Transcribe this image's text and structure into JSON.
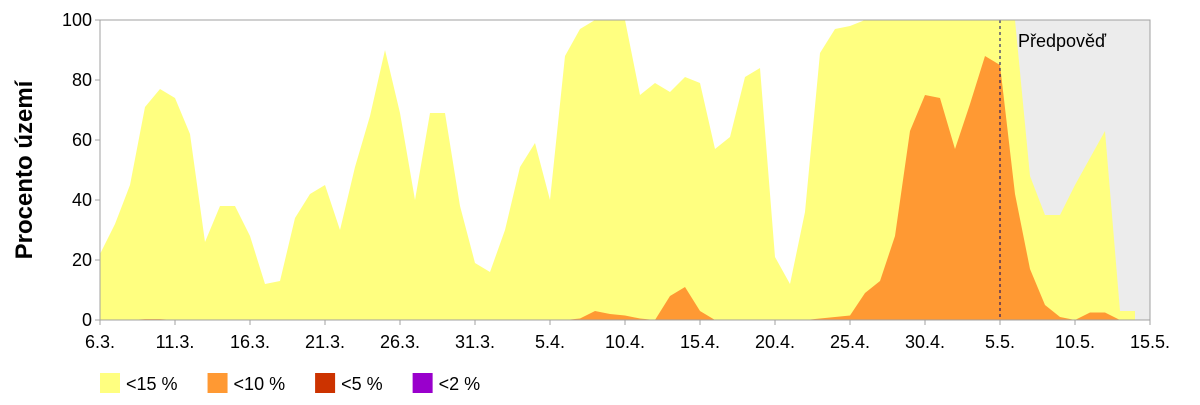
{
  "chart_data": {
    "type": "area",
    "ylabel": "Procento území",
    "categories": [
      "6.3.",
      null,
      null,
      null,
      null,
      "11.3.",
      null,
      null,
      null,
      null,
      "16.3.",
      null,
      null,
      null,
      null,
      "21.3.",
      null,
      null,
      null,
      null,
      "26.3.",
      null,
      null,
      null,
      null,
      "31.3.",
      null,
      null,
      null,
      null,
      "5.4.",
      null,
      null,
      null,
      null,
      "10.4.",
      null,
      null,
      null,
      null,
      "15.4.",
      null,
      null,
      null,
      null,
      "20.4.",
      null,
      null,
      null,
      null,
      "25.4.",
      null,
      null,
      null,
      null,
      "30.4.",
      null,
      null,
      null,
      null,
      "5.5.",
      null,
      null,
      null,
      null,
      "10.5.",
      null,
      null,
      null,
      null,
      "15.5."
    ],
    "series": [
      {
        "name": "<15 %",
        "color": "#ffff80",
        "values": [
          22,
          32,
          45,
          71,
          77,
          74,
          62,
          26,
          38,
          38,
          28,
          12,
          13,
          34,
          42,
          45,
          30,
          51,
          68,
          90,
          69,
          40,
          69,
          69,
          38,
          19,
          16,
          30,
          51,
          59,
          40,
          88,
          97,
          100,
          100,
          100,
          75,
          79,
          76,
          81,
          79,
          57,
          61,
          81,
          84,
          21,
          12,
          36,
          89,
          97,
          98,
          100,
          100,
          100,
          100,
          100,
          100,
          100,
          100,
          100,
          100,
          100,
          48,
          35,
          35,
          45,
          54,
          63,
          3,
          3,
          null
        ]
      },
      {
        "name": "<10 %",
        "color": "#ff9933",
        "values": [
          0,
          0,
          0,
          0.3,
          0.3,
          0,
          0,
          0,
          0,
          0,
          0,
          0,
          0,
          0,
          0,
          0,
          0,
          0,
          0,
          0,
          0,
          0,
          0,
          0,
          0,
          0,
          0,
          0,
          0,
          0,
          0,
          0,
          0.5,
          3,
          2,
          1.5,
          0.5,
          0,
          8,
          11,
          3,
          0,
          0,
          0,
          0,
          0,
          0,
          0,
          0.5,
          1,
          1.5,
          9,
          13,
          28,
          63,
          75,
          74,
          57,
          72,
          88,
          85,
          42,
          17,
          5,
          1,
          0,
          2.5,
          2.5,
          0,
          0,
          null
        ]
      },
      {
        "name": "<5 %",
        "color": "#cc3300",
        "values": [
          0,
          0,
          0,
          0,
          0,
          0,
          0,
          0,
          0,
          0,
          0,
          0,
          0,
          0,
          0,
          0,
          0,
          0,
          0,
          0,
          0,
          0,
          0,
          0,
          0,
          0,
          0,
          0,
          0,
          0,
          0,
          0,
          0,
          0,
          0,
          0,
          0,
          0,
          0,
          0,
          0,
          0,
          0,
          0,
          0,
          0,
          0,
          0,
          0,
          0,
          0,
          0,
          0,
          0,
          0,
          0,
          0,
          0,
          0,
          0,
          0,
          0,
          0,
          0,
          0,
          0,
          0,
          0,
          0,
          0,
          null
        ]
      },
      {
        "name": "<2 %",
        "color": "#9900cc",
        "values": [
          0,
          0,
          0,
          0,
          0,
          0,
          0,
          0,
          0,
          0,
          0,
          0,
          0,
          0,
          0,
          0,
          0,
          0,
          0,
          0,
          0,
          0,
          0,
          0,
          0,
          0,
          0,
          0,
          0,
          0,
          0,
          0,
          0,
          0,
          0,
          0,
          0,
          0,
          0,
          0,
          0,
          0,
          0,
          0,
          0,
          0,
          0,
          0,
          0,
          0,
          0,
          0,
          0,
          0,
          0,
          0,
          0,
          0,
          0,
          0,
          0,
          0,
          0,
          0,
          0,
          0,
          0,
          0,
          0,
          0,
          null
        ]
      }
    ],
    "ylim": [
      0,
      100
    ],
    "yticks": [
      0,
      20,
      40,
      60,
      80,
      100
    ],
    "forecast_label": "Předpověď",
    "forecast_start": "5.5.",
    "forecast_color": "#ececec",
    "legend": "bottom"
  }
}
